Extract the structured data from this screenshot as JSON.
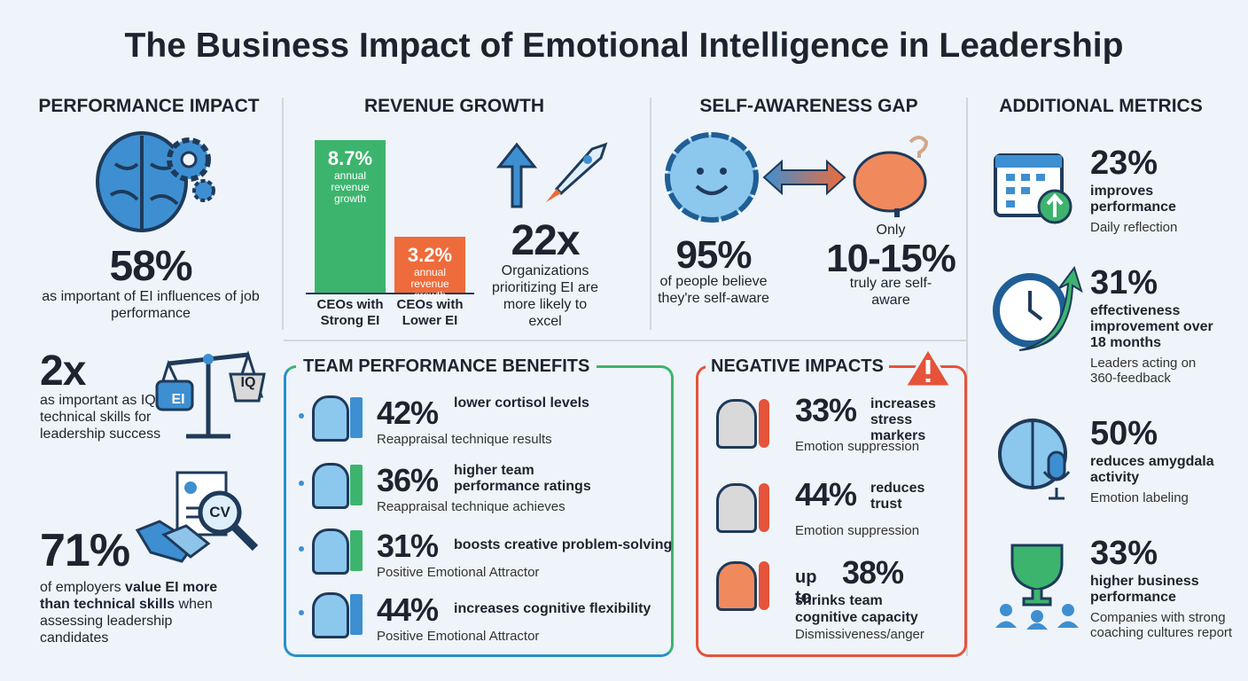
{
  "title": "The Business Impact of Emotional Intelligence in Leadership",
  "performance": {
    "heading": "PERFORMANCE IMPACT",
    "items": [
      {
        "value": "58%",
        "text": "as important of EI influences of job performance"
      },
      {
        "value": "2x",
        "text": "as important as IQ or technical skills for leadership success",
        "icon_labels": [
          "EI",
          "IQ"
        ]
      },
      {
        "value": "71%",
        "parts": [
          "of employers",
          "value EI more than technical skills",
          "when assessing leadership candidates"
        ],
        "icon_label": "CV"
      }
    ]
  },
  "revenue": {
    "heading": "REVENUE GROWTH",
    "bars": [
      {
        "value": 8.7,
        "value_label": "8.7%",
        "note": "annual revenue growth",
        "label": "CEOs with Strong EI",
        "color": "#3cb46e"
      },
      {
        "value": 3.2,
        "value_label": "3.2%",
        "note": "annual revenue growth",
        "label": "CEOs with Lower EI",
        "color": "#ee6b3b"
      }
    ],
    "stat": {
      "value": "22x",
      "text": "Organizations prioritizing EI are more likely to excel"
    }
  },
  "self_awareness": {
    "heading": "SELF-AWARENESS GAP",
    "left": {
      "value": "95%",
      "text": "of people believe they're self-aware"
    },
    "right": {
      "prefix": "Only",
      "value": "10-15%",
      "text": "truly are self-aware"
    }
  },
  "additional": {
    "heading": "ADDITIONAL METRICS",
    "items": [
      {
        "value": "23%",
        "text": "improves performance",
        "note": "Daily reflection"
      },
      {
        "value": "31%",
        "text": "effectiveness improvement over 18 months",
        "note": "Leaders acting on 360-feedback"
      },
      {
        "value": "50%",
        "text": "reduces amygdala activity",
        "note": "Emotion labeling"
      },
      {
        "value": "33%",
        "text": "higher business performance",
        "note": "Companies with strong coaching cultures report"
      }
    ]
  },
  "team": {
    "heading": "TEAM PERFORMANCE BENEFITS",
    "items": [
      {
        "value": "42%",
        "text": "lower cortisol levels",
        "note": "Reappraisal technique results"
      },
      {
        "value": "36%",
        "text": "higher team performance ratings",
        "note": "Reappraisal technique achieves"
      },
      {
        "value": "31%",
        "text": "boosts creative problem-solving",
        "note": "Positive Emotional Attractor"
      },
      {
        "value": "44%",
        "text": "increases cognitive flexibility",
        "note": "Positive Emotional Attractor"
      }
    ]
  },
  "negative": {
    "heading": "NEGATIVE IMPACTS",
    "items": [
      {
        "value": "33%",
        "text": "increases stress markers",
        "note": "Emotion suppression"
      },
      {
        "value": "44%",
        "text": "reduces trust",
        "note": "Emotion suppression"
      },
      {
        "prefix": "up to",
        "value": "38%",
        "text": "shrinks team cognitive capacity",
        "note": "Dismissiveness/anger"
      }
    ]
  }
}
